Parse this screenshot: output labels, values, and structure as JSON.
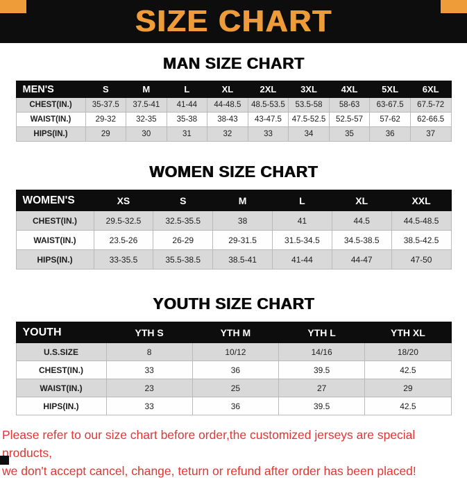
{
  "banner": {
    "title": "SIZE CHART",
    "accent_color": "#ee9c3a",
    "background_color": "#0d0d0d"
  },
  "sections": [
    {
      "title": "MAN SIZE CHART",
      "table": {
        "header": [
          "MEN'S",
          "S",
          "M",
          "L",
          "XL",
          "2XL",
          "3XL",
          "4XL",
          "5XL",
          "6XL"
        ],
        "rows": [
          [
            "CHEST(IN.)",
            "35-37.5",
            "37.5-41",
            "41-44",
            "44-48.5",
            "48.5-53.5",
            "53.5-58",
            "58-63",
            "63-67.5",
            "67.5-72"
          ],
          [
            "WAIST(IN.)",
            "29-32",
            "32-35",
            "35-38",
            "38-43",
            "43-47.5",
            "47.5-52.5",
            "52.5-57",
            "57-62",
            "62-66.5"
          ],
          [
            "HIPS(IN.)",
            "29",
            "30",
            "31",
            "32",
            "33",
            "34",
            "35",
            "36",
            "37"
          ]
        ]
      }
    },
    {
      "title": "WOMEN SIZE CHART",
      "table": {
        "header": [
          "WOMEN'S",
          "XS",
          "S",
          "M",
          "L",
          "XL",
          "XXL"
        ],
        "rows": [
          [
            "CHEST(IN.)",
            "29.5-32.5",
            "32.5-35.5",
            "38",
            "41",
            "44.5",
            "44.5-48.5"
          ],
          [
            "WAIST(IN.)",
            "23.5-26",
            "26-29",
            "29-31.5",
            "31.5-34.5",
            "34.5-38.5",
            "38.5-42.5"
          ],
          [
            "HIPS(IN.)",
            "33-35.5",
            "35.5-38.5",
            "38.5-41",
            "41-44",
            "44-47",
            "47-50"
          ]
        ]
      }
    },
    {
      "title": "YOUTH SIZE CHART",
      "table": {
        "header": [
          "YOUTH",
          "YTH S",
          "YTH M",
          "YTH L",
          "YTH XL"
        ],
        "rows": [
          [
            "U.S.SIZE",
            "8",
            "10/12",
            "14/16",
            "18/20"
          ],
          [
            "CHEST(IN.)",
            "33",
            "36",
            "39.5",
            "42.5"
          ],
          [
            "WAIST(IN.)",
            "23",
            "25",
            "27",
            "29"
          ],
          [
            "HIPS(IN.)",
            "33",
            "36",
            "39.5",
            "42.5"
          ]
        ]
      }
    }
  ],
  "footer": {
    "line1": "Please refer to our size chart before order,the customized jerseys are special products,",
    "line2": "we don't accept cancel, change, teturn or refund after order has been placed!",
    "text_color": "#e63432"
  }
}
